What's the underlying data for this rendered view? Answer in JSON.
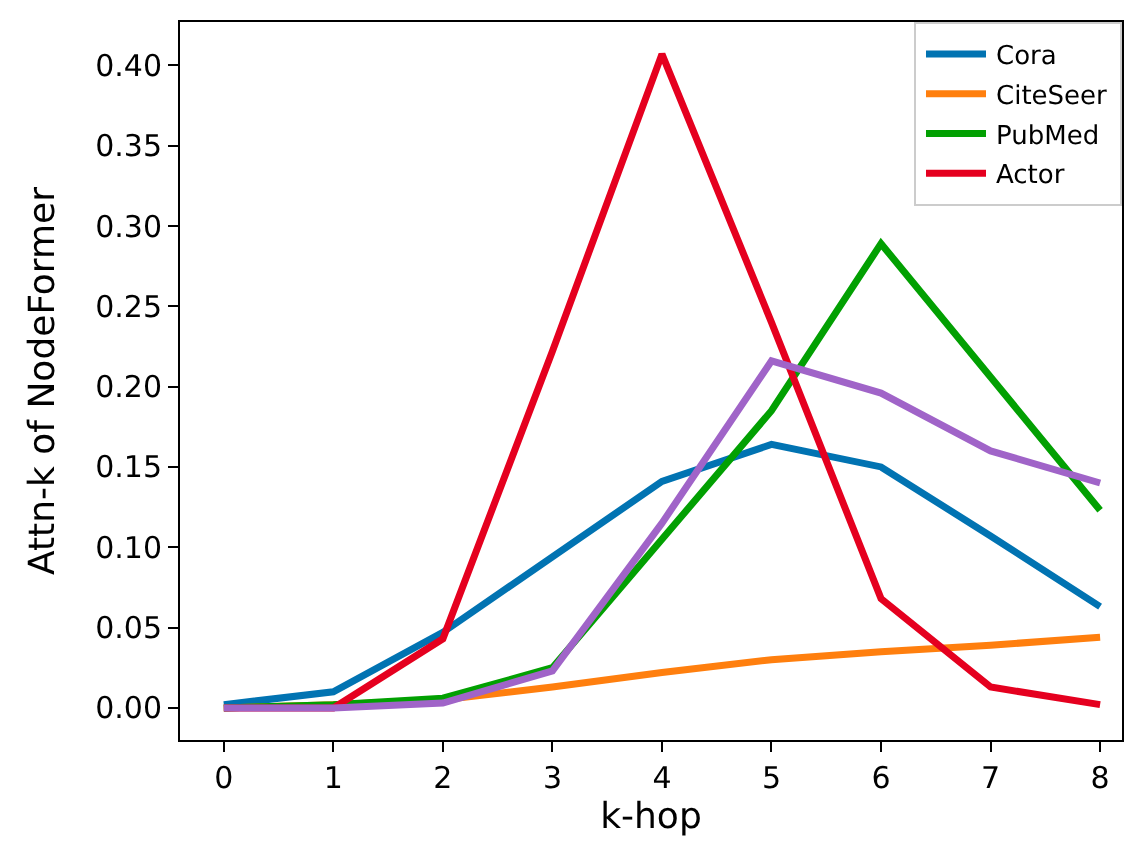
{
  "chart_data": {
    "type": "line",
    "xlabel": "k-hop",
    "ylabel": "Attn-k of NodeFormer",
    "x": [
      0,
      1,
      2,
      3,
      4,
      5,
      6,
      7,
      8
    ],
    "series": [
      {
        "name": "Cora",
        "color": "#0173b2",
        "values": [
          0.002,
          0.01,
          0.047,
          0.094,
          0.141,
          0.164,
          0.15,
          0.107,
          0.063
        ]
      },
      {
        "name": "CiteSeer",
        "color": "#ff7f0e",
        "values": [
          0,
          0.002,
          0.005,
          0.013,
          0.022,
          0.03,
          0.035,
          0.039,
          0.044
        ]
      },
      {
        "name": "PubMed",
        "color": "#02a002",
        "values": [
          0,
          0.002,
          0.006,
          0.025,
          0.105,
          0.185,
          0.289,
          0.206,
          0.123
        ]
      },
      {
        "name": "Actor",
        "color": "#e5001f",
        "values": [
          0,
          0,
          0.043,
          0.222,
          0.407,
          0.24,
          0.068,
          0.013,
          0.002
        ]
      },
      {
        "color": "#a064c8",
        "values": [
          0,
          0,
          0.003,
          0.023,
          0.115,
          0.216,
          0.196,
          0.16,
          0.14
        ]
      }
    ],
    "xlim": [
      -0.4,
      8.2
    ],
    "xticks": [
      0,
      1,
      2,
      3,
      4,
      5,
      6,
      7,
      8
    ],
    "ylim": [
      -0.02,
      0.427
    ],
    "yticks": [
      {
        "value": 0,
        "label": "0.00"
      },
      {
        "value": 0.05,
        "label": "0.05"
      },
      {
        "value": 0.1,
        "label": "0.10"
      },
      {
        "value": 0.15,
        "label": "0.15"
      },
      {
        "value": 0.2,
        "label": "0.20"
      },
      {
        "value": 0.25,
        "label": "0.25"
      },
      {
        "value": 0.3,
        "label": "0.30"
      },
      {
        "value": 0.35,
        "label": "0.35"
      },
      {
        "value": 0.4,
        "label": "0.40"
      }
    ],
    "legend": "top right",
    "marker": "none",
    "line_style": "solid"
  }
}
